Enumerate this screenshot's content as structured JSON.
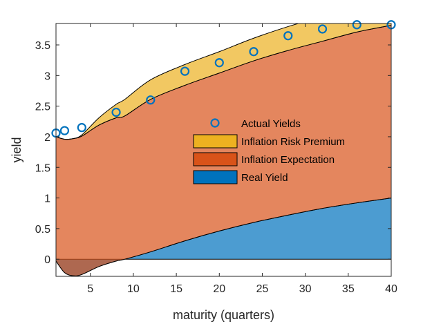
{
  "chart_data": {
    "type": "area",
    "xlabel": "maturity (quarters)",
    "ylabel": "yield",
    "xlim": [
      1,
      40
    ],
    "ylim": [
      -0.28,
      3.85
    ],
    "xticks": [
      5,
      10,
      15,
      20,
      25,
      30,
      35,
      40
    ],
    "yticks": [
      0,
      0.5,
      1,
      1.5,
      2,
      2.5,
      3,
      3.5
    ],
    "grid": false,
    "legend_position": "center-right",
    "x": [
      1,
      2,
      3,
      4,
      6,
      8,
      9,
      12,
      16,
      20,
      24,
      28,
      32,
      36,
      40
    ],
    "series": [
      {
        "name": "Real Yield",
        "color": "#0072BD",
        "values": [
          -0.03,
          -0.22,
          -0.27,
          -0.25,
          -0.12,
          -0.03,
          0.0,
          0.12,
          0.3,
          0.46,
          0.6,
          0.72,
          0.83,
          0.92,
          1.0
        ]
      },
      {
        "name": "Inflation Expectation",
        "color": "#D95319",
        "values": [
          2.03,
          2.18,
          2.24,
          2.26,
          2.31,
          2.34,
          2.34,
          2.49,
          2.54,
          2.58,
          2.64,
          2.69,
          2.73,
          2.79,
          2.82
        ]
      },
      {
        "name": "Inflation Risk Premium",
        "color": "#EDB120",
        "values": [
          0.0,
          0.0,
          0.0,
          0.02,
          0.12,
          0.22,
          0.27,
          0.32,
          0.34,
          0.35,
          0.37,
          0.39,
          0.4,
          0.41,
          0.41
        ]
      }
    ],
    "actual_yields": {
      "name": "Actual Yields",
      "color": "#0072BD",
      "x": [
        1,
        2,
        4,
        8,
        12,
        16,
        20,
        24,
        28,
        32,
        36,
        40
      ],
      "y": [
        2.06,
        2.1,
        2.15,
        2.4,
        2.6,
        3.07,
        3.21,
        3.39,
        3.65,
        3.76,
        3.83,
        3.83
      ]
    },
    "legend": [
      "Actual Yields",
      "Inflation Risk Premium",
      "Inflation Expectation",
      "Real Yield"
    ]
  }
}
